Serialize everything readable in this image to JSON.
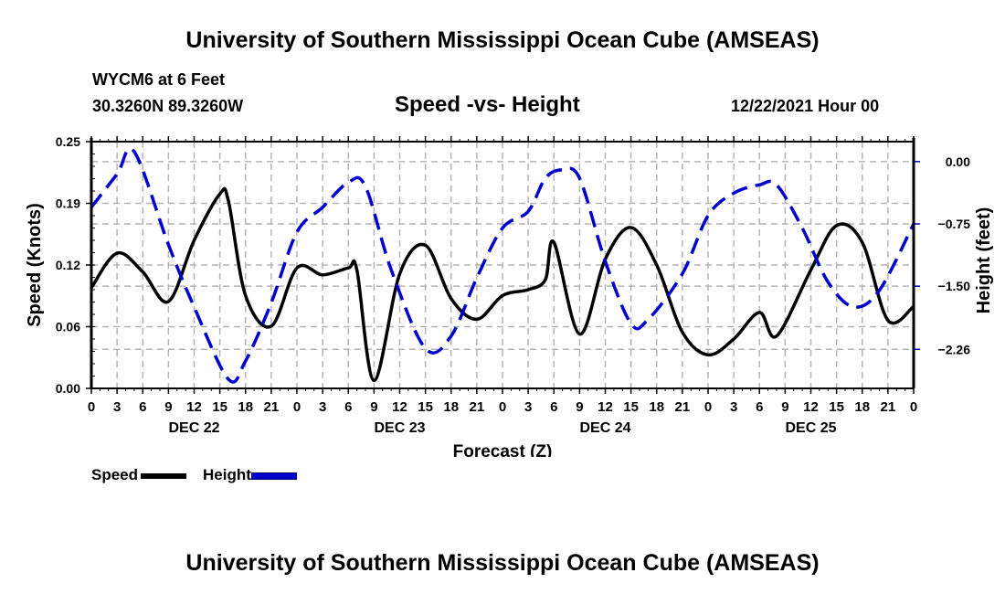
{
  "header": {
    "title": "University of Southern Mississippi Ocean Cube (AMSEAS)",
    "station": "WYCM6 at 6 Feet",
    "coords": "30.3260N  89.3260W",
    "chart_title": "Speed -vs- Height",
    "datetime": "12/22/2021 Hour 00"
  },
  "footer": {
    "title": "University of Southern Mississippi Ocean Cube (AMSEAS)"
  },
  "legend": {
    "speed_label": "Speed",
    "height_label": "Height"
  },
  "colors": {
    "speed": "#000000",
    "height": "#0000cc",
    "grid": "#b4b4b4"
  },
  "chart_data": {
    "type": "line",
    "title": "Speed -vs- Height",
    "xlabel": "Forecast (Z)",
    "ylabel": "Speed (Knots)",
    "y2label": "Height (feet)",
    "xlim": [
      0,
      96
    ],
    "ylim": [
      0,
      0.25
    ],
    "y2lim": [
      -2.73,
      0.24
    ],
    "grid": true,
    "legend_position": "bottom-left",
    "x_tick_labels": [
      "0",
      "3",
      "6",
      "9",
      "12",
      "15",
      "18",
      "21",
      "0",
      "3",
      "6",
      "9",
      "12",
      "15",
      "18",
      "21",
      "0",
      "3",
      "6",
      "9",
      "12",
      "15",
      "18",
      "21",
      "0",
      "3",
      "6",
      "9",
      "12",
      "15",
      "18",
      "21",
      "0"
    ],
    "day_labels": [
      {
        "label": "DEC 22",
        "hour": 12
      },
      {
        "label": "DEC 23",
        "hour": 36
      },
      {
        "label": "DEC 24",
        "hour": 60
      },
      {
        "label": "DEC 25",
        "hour": 84
      }
    ],
    "y_ticks": [
      {
        "value": 0.0,
        "label": "0.00"
      },
      {
        "value": 0.0625,
        "label": "0.06"
      },
      {
        "value": 0.125,
        "label": "0.12"
      },
      {
        "value": 0.1875,
        "label": "0.19"
      },
      {
        "value": 0.25,
        "label": "0.25"
      }
    ],
    "y2_ticks": [
      {
        "value": 0.0,
        "label": "0.00"
      },
      {
        "value": -0.75,
        "label": "-0.75"
      },
      {
        "value": -1.5,
        "label": "-1.50"
      },
      {
        "value": -2.26,
        "label": "-2.26"
      }
    ],
    "series": [
      {
        "name": "Speed",
        "axis": "left",
        "style": "solid",
        "x": [
          0,
          3,
          6,
          9,
          12,
          15,
          16,
          18,
          21,
          24,
          27,
          30,
          31,
          33,
          36,
          39,
          42,
          45,
          48,
          51,
          53,
          54,
          57,
          60,
          63,
          66,
          69,
          72,
          75,
          78,
          80,
          84,
          87,
          90,
          93,
          96
        ],
        "values": [
          0.102,
          0.137,
          0.118,
          0.088,
          0.15,
          0.197,
          0.19,
          0.094,
          0.063,
          0.122,
          0.115,
          0.122,
          0.12,
          0.008,
          0.116,
          0.145,
          0.091,
          0.07,
          0.094,
          0.1,
          0.11,
          0.148,
          0.055,
          0.131,
          0.163,
          0.125,
          0.057,
          0.034,
          0.05,
          0.077,
          0.053,
          0.12,
          0.165,
          0.148,
          0.069,
          0.083
        ]
      },
      {
        "name": "Height",
        "axis": "right",
        "style": "dashed",
        "x": [
          0,
          3,
          5,
          9,
          12,
          16,
          18,
          21,
          24,
          27,
          30,
          32,
          35,
          39,
          42,
          45,
          48,
          51,
          53,
          55,
          57,
          60,
          63,
          65,
          69,
          72,
          75,
          78,
          80,
          83,
          86,
          89,
          92,
          96
        ],
        "values": [
          -0.55,
          -0.15,
          0.12,
          -1.0,
          -1.75,
          -2.62,
          -2.4,
          -1.7,
          -0.85,
          -0.55,
          -0.25,
          -0.3,
          -1.3,
          -2.25,
          -2.1,
          -1.4,
          -0.8,
          -0.6,
          -0.2,
          -0.1,
          -0.2,
          -1.2,
          -1.95,
          -1.9,
          -1.35,
          -0.65,
          -0.38,
          -0.28,
          -0.28,
          -0.8,
          -1.45,
          -1.75,
          -1.55,
          -0.75
        ]
      }
    ]
  }
}
